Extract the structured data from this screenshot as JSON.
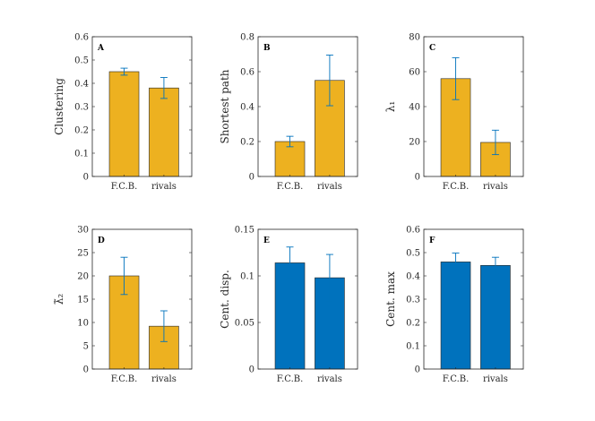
{
  "chart_data": [
    {
      "type": "bar",
      "panel": "A",
      "ylabel": "Clustering",
      "categories": [
        "F.C.B.",
        "rivals"
      ],
      "values": [
        0.45,
        0.38
      ],
      "errors": [
        0.015,
        0.045
      ],
      "ylim": [
        0,
        0.6
      ],
      "yticks": [
        0,
        0.1,
        0.2,
        0.3,
        0.4,
        0.5,
        0.6
      ],
      "ytick_labels": [
        "0",
        "0.1",
        "0.2",
        "0.3",
        "0.4",
        "0.5",
        "0.6"
      ],
      "color": "#EDB120"
    },
    {
      "type": "bar",
      "panel": "B",
      "ylabel": "Shortest path",
      "categories": [
        "F.C.B.",
        "rivals"
      ],
      "values": [
        0.2,
        0.55
      ],
      "errors": [
        0.03,
        0.145
      ],
      "ylim": [
        0,
        0.8
      ],
      "yticks": [
        0,
        0.2,
        0.4,
        0.6,
        0.8
      ],
      "ytick_labels": [
        "0",
        "0.2",
        "0.4",
        "0.6",
        "0.8"
      ],
      "color": "#EDB120"
    },
    {
      "type": "bar",
      "panel": "C",
      "ylabel": "λ₁",
      "categories": [
        "F.C.B.",
        "rivals"
      ],
      "values": [
        56,
        19.5
      ],
      "errors": [
        12,
        7
      ],
      "ylim": [
        0,
        80
      ],
      "yticks": [
        0,
        20,
        40,
        60,
        80
      ],
      "ytick_labels": [
        "0",
        "20",
        "40",
        "60",
        "80"
      ],
      "color": "#EDB120"
    },
    {
      "type": "bar",
      "panel": "D",
      "ylabel": "λ̃₂",
      "categories": [
        "F.C.B.",
        "rivals"
      ],
      "values": [
        20,
        9.2
      ],
      "errors": [
        4,
        3.3
      ],
      "ylim": [
        0,
        30
      ],
      "yticks": [
        0,
        5,
        10,
        15,
        20,
        25,
        30
      ],
      "ytick_labels": [
        "0",
        "5",
        "10",
        "15",
        "20",
        "25",
        "30"
      ],
      "color": "#EDB120"
    },
    {
      "type": "bar",
      "panel": "E",
      "ylabel": "Cent. disp.",
      "categories": [
        "F.C.B.",
        "rivals"
      ],
      "values": [
        0.114,
        0.098
      ],
      "errors": [
        0.017,
        0.025
      ],
      "ylim": [
        0,
        0.15
      ],
      "yticks": [
        0,
        0.05,
        0.1,
        0.15
      ],
      "ytick_labels": [
        "0",
        "0.05",
        "0.1",
        "0.15"
      ],
      "color": "#0072BD"
    },
    {
      "type": "bar",
      "panel": "F",
      "ylabel": "Cent. max",
      "categories": [
        "F.C.B.",
        "rivals"
      ],
      "values": [
        0.46,
        0.445
      ],
      "errors": [
        0.038,
        0.035
      ],
      "ylim": [
        0,
        0.6
      ],
      "yticks": [
        0,
        0.1,
        0.2,
        0.3,
        0.4,
        0.5,
        0.6
      ],
      "ytick_labels": [
        "0",
        "0.1",
        "0.2",
        "0.3",
        "0.4",
        "0.5",
        "0.6"
      ],
      "color": "#0072BD"
    }
  ]
}
